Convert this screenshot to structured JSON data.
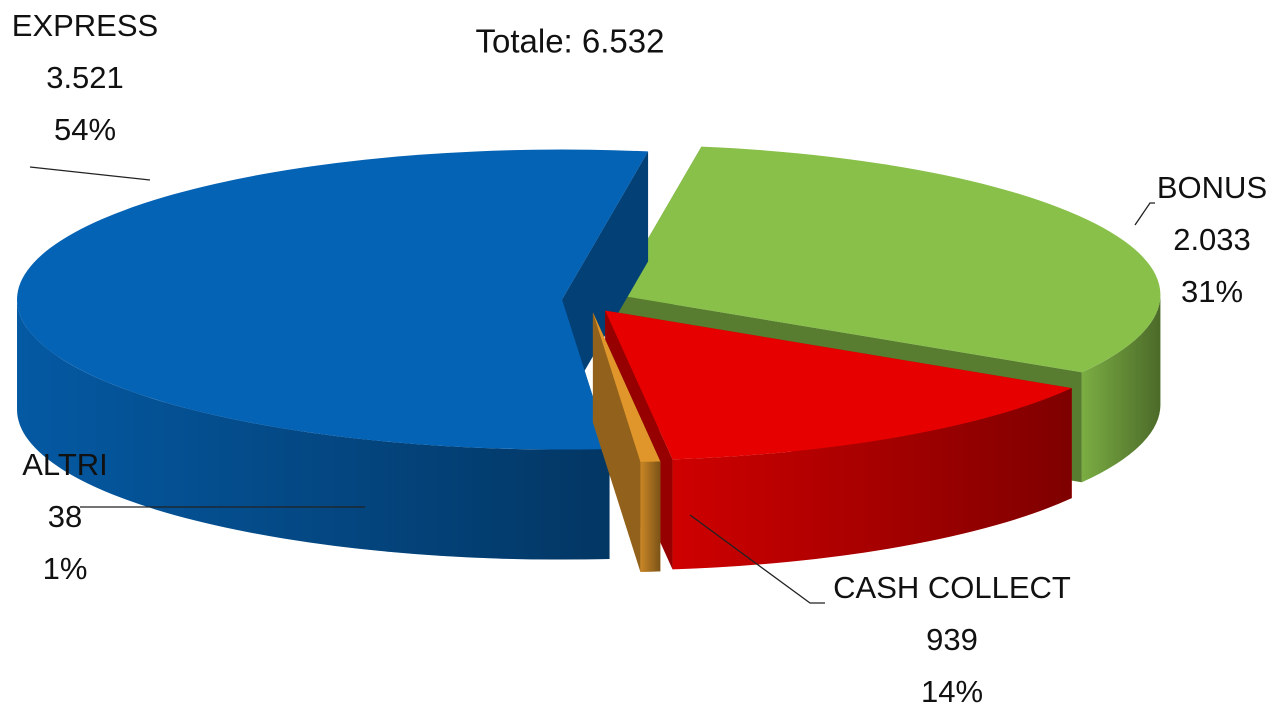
{
  "chart_data": {
    "type": "pie",
    "title": "Totale: 6.532",
    "categories": [
      "EXPRESS",
      "BONUS",
      "CASH COLLECT",
      "ALTRI"
    ],
    "values": [
      3521,
      2033,
      939,
      38
    ],
    "value_labels": [
      "3.521",
      "2.033",
      "939",
      "38"
    ],
    "percent_labels": [
      "54%",
      "31%",
      "14%",
      "1%"
    ],
    "colors": [
      "#0563b5",
      "#88c04a",
      "#e60000",
      "#e0962a"
    ]
  }
}
